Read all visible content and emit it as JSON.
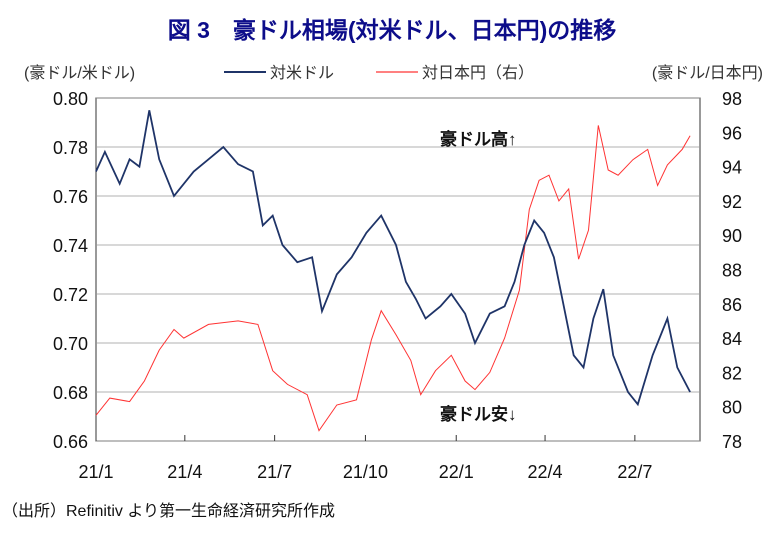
{
  "chart_data": {
    "type": "line",
    "title": "図 3　豪ドル相場(対米ドル、日本円)の推移",
    "ylabel_left": "(豪ドル/米ドル)",
    "ylabel_right": "(豪ドル/日本円)",
    "ylim_left": [
      0.66,
      0.8
    ],
    "ylim_right": [
      78,
      98
    ],
    "yticks_left": [
      "0.80",
      "0.78",
      "0.76",
      "0.74",
      "0.72",
      "0.70",
      "0.68",
      "0.66"
    ],
    "yticks_right": [
      "98",
      "96",
      "94",
      "92",
      "90",
      "88",
      "86",
      "84",
      "82",
      "80",
      "78"
    ],
    "xticks": [
      {
        "label": "21/1",
        "date": "2021-01-01"
      },
      {
        "label": "21/4",
        "date": "2021-04-01"
      },
      {
        "label": "21/7",
        "date": "2021-07-01"
      },
      {
        "label": "21/10",
        "date": "2021-10-01"
      },
      {
        "label": "22/1",
        "date": "2022-01-01"
      },
      {
        "label": "22/4",
        "date": "2022-04-01"
      },
      {
        "label": "22/7",
        "date": "2022-07-01"
      }
    ],
    "xlim": [
      "2021-01-01",
      "2022-09-05"
    ],
    "grid": "horizontal",
    "legend_position": "top-center",
    "annotations": [
      "豪ドル高↑",
      "豪ドル安↓"
    ],
    "source": "（出所）Refinitiv より第一生命経済研究所作成",
    "series": [
      {
        "name": "対米ドル",
        "axis": "left",
        "color": "#1f3468",
        "points": [
          [
            "2021-01-01",
            0.77
          ],
          [
            "2021-01-10",
            0.778
          ],
          [
            "2021-01-25",
            0.765
          ],
          [
            "2021-02-04",
            0.775
          ],
          [
            "2021-02-14",
            0.772
          ],
          [
            "2021-02-24",
            0.795
          ],
          [
            "2021-03-06",
            0.775
          ],
          [
            "2021-03-21",
            0.76
          ],
          [
            "2021-03-31",
            0.765
          ],
          [
            "2021-04-10",
            0.77
          ],
          [
            "2021-04-25",
            0.775
          ],
          [
            "2021-05-10",
            0.78
          ],
          [
            "2021-05-25",
            0.773
          ],
          [
            "2021-06-09",
            0.77
          ],
          [
            "2021-06-19",
            0.748
          ],
          [
            "2021-06-29",
            0.752
          ],
          [
            "2021-07-09",
            0.74
          ],
          [
            "2021-07-24",
            0.733
          ],
          [
            "2021-08-08",
            0.735
          ],
          [
            "2021-08-18",
            0.713
          ],
          [
            "2021-09-02",
            0.728
          ],
          [
            "2021-09-17",
            0.735
          ],
          [
            "2021-10-02",
            0.745
          ],
          [
            "2021-10-17",
            0.752
          ],
          [
            "2021-11-01",
            0.74
          ],
          [
            "2021-11-11",
            0.725
          ],
          [
            "2021-11-21",
            0.718
          ],
          [
            "2021-12-01",
            0.71
          ],
          [
            "2021-12-16",
            0.715
          ],
          [
            "2021-12-27",
            0.72
          ],
          [
            "2022-01-10",
            0.712
          ],
          [
            "2022-01-20",
            0.7
          ],
          [
            "2022-02-04",
            0.712
          ],
          [
            "2022-02-19",
            0.715
          ],
          [
            "2022-03-01",
            0.725
          ],
          [
            "2022-03-11",
            0.74
          ],
          [
            "2022-03-21",
            0.75
          ],
          [
            "2022-03-31",
            0.745
          ],
          [
            "2022-04-10",
            0.735
          ],
          [
            "2022-04-20",
            0.715
          ],
          [
            "2022-04-30",
            0.695
          ],
          [
            "2022-05-10",
            0.69
          ],
          [
            "2022-05-20",
            0.71
          ],
          [
            "2022-05-30",
            0.722
          ],
          [
            "2022-06-09",
            0.695
          ],
          [
            "2022-06-24",
            0.68
          ],
          [
            "2022-07-04",
            0.675
          ],
          [
            "2022-07-19",
            0.695
          ],
          [
            "2022-08-03",
            0.71
          ],
          [
            "2022-08-13",
            0.69
          ],
          [
            "2022-08-26",
            0.68
          ]
        ]
      },
      {
        "name": "対日本円（右）",
        "axis": "right",
        "color": "#ff3333",
        "points": [
          [
            "2021-01-01",
            79.5
          ],
          [
            "2021-01-15",
            80.5
          ],
          [
            "2021-02-04",
            80.3
          ],
          [
            "2021-02-19",
            81.5
          ],
          [
            "2021-03-06",
            83.3
          ],
          [
            "2021-03-21",
            84.5
          ],
          [
            "2021-03-31",
            84.0
          ],
          [
            "2021-04-25",
            84.8
          ],
          [
            "2021-05-25",
            85.0
          ],
          [
            "2021-06-14",
            84.8
          ],
          [
            "2021-06-29",
            82.1
          ],
          [
            "2021-07-14",
            81.3
          ],
          [
            "2021-08-03",
            80.7
          ],
          [
            "2021-08-15",
            78.6
          ],
          [
            "2021-09-02",
            80.1
          ],
          [
            "2021-09-22",
            80.4
          ],
          [
            "2021-10-07",
            83.9
          ],
          [
            "2021-10-17",
            85.6
          ],
          [
            "2021-11-01",
            84.2
          ],
          [
            "2021-11-16",
            82.7
          ],
          [
            "2021-11-26",
            80.7
          ],
          [
            "2021-12-11",
            82.1
          ],
          [
            "2021-12-27",
            83.0
          ],
          [
            "2022-01-10",
            81.5
          ],
          [
            "2022-01-20",
            81.0
          ],
          [
            "2022-02-04",
            82.0
          ],
          [
            "2022-02-19",
            84.0
          ],
          [
            "2022-03-06",
            86.8
          ],
          [
            "2022-03-16",
            91.5
          ],
          [
            "2022-03-26",
            93.2
          ],
          [
            "2022-04-05",
            93.5
          ],
          [
            "2022-04-15",
            92.0
          ],
          [
            "2022-04-25",
            92.7
          ],
          [
            "2022-05-05",
            88.6
          ],
          [
            "2022-05-15",
            90.3
          ],
          [
            "2022-05-25",
            96.4
          ],
          [
            "2022-06-04",
            93.8
          ],
          [
            "2022-06-14",
            93.5
          ],
          [
            "2022-06-29",
            94.4
          ],
          [
            "2022-07-14",
            95.0
          ],
          [
            "2022-07-24",
            92.9
          ],
          [
            "2022-08-03",
            94.1
          ],
          [
            "2022-08-18",
            95.0
          ],
          [
            "2022-08-26",
            95.8
          ]
        ]
      }
    ]
  }
}
